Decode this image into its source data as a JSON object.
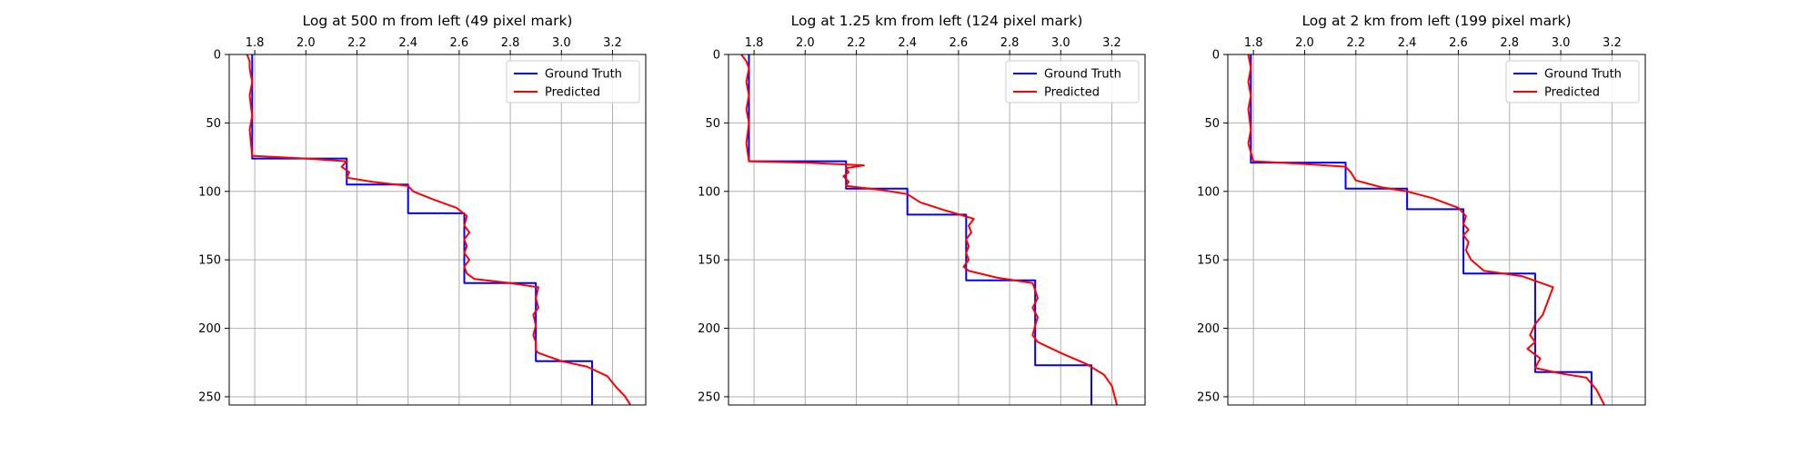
{
  "colors": {
    "ground_truth": "#0000ff",
    "predicted": "#ff0000",
    "grid": "#b0b0b0",
    "axes": "#000000"
  },
  "chart_data": [
    {
      "type": "line",
      "title": "Log at 500 m from left (49 pixel mark)",
      "xlabel": "",
      "ylabel": "",
      "x_axis_position": "top",
      "y_inverted": true,
      "xlim": [
        1.7,
        3.33
      ],
      "ylim": [
        0,
        256
      ],
      "xticks": [
        1.8,
        2.0,
        2.2,
        2.4,
        2.6,
        2.8,
        3.0,
        3.2
      ],
      "xtick_labels": [
        "1.8",
        "2.0",
        "2.2",
        "2.4",
        "2.6",
        "2.8",
        "3.0",
        "3.2"
      ],
      "yticks": [
        0,
        50,
        100,
        150,
        200,
        250
      ],
      "ytick_labels": [
        "0",
        "50",
        "100",
        "150",
        "200",
        "250"
      ],
      "grid": true,
      "legend": "upper-right",
      "series": [
        {
          "name": "Ground Truth",
          "color": "#0000ff",
          "x": [
            1.79,
            1.79,
            2.16,
            2.16,
            2.4,
            2.4,
            2.62,
            2.62,
            2.9,
            2.9,
            3.12,
            3.12
          ],
          "y": [
            0,
            76,
            76,
            95,
            95,
            116,
            116,
            167,
            167,
            224,
            224,
            256
          ]
        },
        {
          "name": "Predicted",
          "color": "#ff0000",
          "x": [
            1.77,
            1.78,
            1.78,
            1.79,
            1.78,
            1.79,
            1.78,
            1.79,
            2.0,
            2.16,
            2.14,
            2.17,
            2.16,
            2.26,
            2.4,
            2.42,
            2.5,
            2.59,
            2.63,
            2.62,
            2.64,
            2.62,
            2.63,
            2.62,
            2.64,
            2.62,
            2.63,
            2.66,
            2.8,
            2.91,
            2.9,
            2.91,
            2.89,
            2.9,
            2.89,
            2.9,
            2.9,
            2.91,
            3.0,
            3.1,
            3.18,
            3.21,
            3.25,
            3.27
          ],
          "y": [
            0,
            5,
            10,
            20,
            30,
            45,
            55,
            74,
            76,
            78,
            82,
            86,
            90,
            93,
            96,
            100,
            106,
            112,
            118,
            125,
            130,
            135,
            140,
            145,
            150,
            155,
            160,
            164,
            167,
            170,
            178,
            185,
            190,
            198,
            205,
            210,
            216,
            218,
            224,
            228,
            235,
            242,
            250,
            256
          ]
        }
      ]
    },
    {
      "type": "line",
      "title": "Log at 1.25 km from left (124 pixel mark)",
      "xlabel": "",
      "ylabel": "",
      "x_axis_position": "top",
      "y_inverted": true,
      "xlim": [
        1.7,
        3.33
      ],
      "ylim": [
        0,
        256
      ],
      "xticks": [
        1.8,
        2.0,
        2.2,
        2.4,
        2.6,
        2.8,
        3.0,
        3.2
      ],
      "xtick_labels": [
        "1.8",
        "2.0",
        "2.2",
        "2.4",
        "2.6",
        "2.8",
        "3.0",
        "3.2"
      ],
      "yticks": [
        0,
        50,
        100,
        150,
        200,
        250
      ],
      "ytick_labels": [
        "0",
        "50",
        "100",
        "150",
        "200",
        "250"
      ],
      "grid": true,
      "legend": "upper-right",
      "series": [
        {
          "name": "Ground Truth",
          "color": "#0000ff",
          "x": [
            1.78,
            1.78,
            2.16,
            2.16,
            2.4,
            2.4,
            2.63,
            2.63,
            2.9,
            2.9,
            3.12,
            3.12
          ],
          "y": [
            0,
            78,
            78,
            98,
            98,
            117,
            117,
            165,
            165,
            227,
            227,
            256
          ]
        },
        {
          "name": "Predicted",
          "color": "#ff0000",
          "x": [
            1.75,
            1.77,
            1.78,
            1.77,
            1.78,
            1.77,
            1.78,
            1.77,
            1.78,
            2.0,
            2.23,
            2.16,
            2.17,
            2.15,
            2.17,
            2.16,
            2.3,
            2.4,
            2.45,
            2.55,
            2.66,
            2.64,
            2.65,
            2.63,
            2.64,
            2.63,
            2.64,
            2.62,
            2.64,
            2.75,
            2.89,
            2.9,
            2.91,
            2.89,
            2.91,
            2.9,
            2.89,
            2.91,
            3.0,
            3.1,
            3.17,
            3.2,
            3.22
          ],
          "y": [
            0,
            5,
            10,
            20,
            30,
            40,
            50,
            65,
            78,
            79,
            81,
            83,
            86,
            89,
            93,
            96,
            99,
            102,
            108,
            114,
            120,
            125,
            130,
            135,
            140,
            145,
            150,
            155,
            158,
            163,
            167,
            172,
            178,
            185,
            192,
            198,
            205,
            210,
            218,
            226,
            234,
            242,
            256
          ]
        }
      ]
    },
    {
      "type": "line",
      "title": "Log at 2 km from left (199 pixel mark)",
      "xlabel": "",
      "ylabel": "",
      "x_axis_position": "top",
      "y_inverted": true,
      "xlim": [
        1.7,
        3.33
      ],
      "ylim": [
        0,
        256
      ],
      "xticks": [
        1.8,
        2.0,
        2.2,
        2.4,
        2.6,
        2.8,
        3.0,
        3.2
      ],
      "xtick_labels": [
        "1.8",
        "2.0",
        "2.2",
        "2.4",
        "2.6",
        "2.8",
        "3.0",
        "3.2"
      ],
      "yticks": [
        0,
        50,
        100,
        150,
        200,
        250
      ],
      "ytick_labels": [
        "0",
        "50",
        "100",
        "150",
        "200",
        "250"
      ],
      "grid": true,
      "legend": "upper-right",
      "series": [
        {
          "name": "Ground Truth",
          "color": "#0000ff",
          "x": [
            1.79,
            1.79,
            2.16,
            2.16,
            2.4,
            2.4,
            2.62,
            2.62,
            2.9,
            2.9,
            3.12,
            3.12
          ],
          "y": [
            0,
            79,
            79,
            98,
            98,
            113,
            113,
            160,
            160,
            232,
            232,
            256
          ]
        },
        {
          "name": "Predicted",
          "color": "#ff0000",
          "x": [
            1.78,
            1.79,
            1.78,
            1.79,
            1.78,
            1.79,
            1.78,
            1.8,
            2.0,
            2.16,
            2.18,
            2.2,
            2.3,
            2.4,
            2.5,
            2.6,
            2.63,
            2.62,
            2.64,
            2.62,
            2.64,
            2.63,
            2.65,
            2.7,
            2.85,
            2.97,
            2.95,
            2.93,
            2.9,
            2.88,
            2.9,
            2.87,
            2.92,
            2.9,
            3.0,
            3.1,
            3.14,
            3.17
          ],
          "y": [
            0,
            10,
            20,
            30,
            40,
            55,
            65,
            78,
            80,
            82,
            86,
            92,
            97,
            100,
            105,
            112,
            118,
            124,
            128,
            132,
            137,
            143,
            150,
            158,
            162,
            170,
            180,
            190,
            197,
            205,
            210,
            215,
            222,
            229,
            233,
            236,
            245,
            256
          ]
        }
      ]
    }
  ]
}
